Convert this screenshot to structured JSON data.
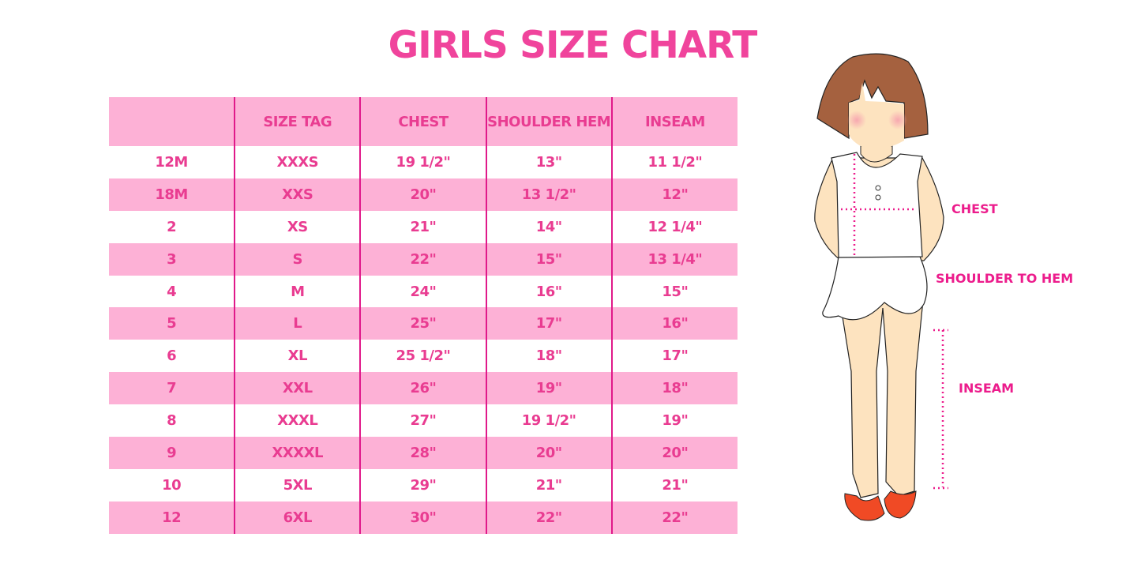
{
  "title": "GIRLS SIZE CHART",
  "table": {
    "headers": [
      "",
      "SIZE TAG",
      "CHEST",
      "SHOULDER HEM",
      "INSEAM"
    ],
    "rows": [
      [
        "12M",
        "XXXS",
        "19 1/2\"",
        "13\"",
        "11 1/2\""
      ],
      [
        "18M",
        "XXS",
        "20\"",
        "13 1/2\"",
        "12\""
      ],
      [
        "2",
        "XS",
        "21\"",
        "14\"",
        "12 1/4\""
      ],
      [
        "3",
        "S",
        "22\"",
        "15\"",
        "13 1/4\""
      ],
      [
        "4",
        "M",
        "24\"",
        "16\"",
        "15\""
      ],
      [
        "5",
        "L",
        "25\"",
        "17\"",
        "16\""
      ],
      [
        "6",
        "XL",
        "25 1/2\"",
        "18\"",
        "17\""
      ],
      [
        "7",
        "XXL",
        "26\"",
        "19\"",
        "18\""
      ],
      [
        "8",
        "XXXL",
        "27\"",
        "19 1/2\"",
        "19\""
      ],
      [
        "9",
        "XXXXL",
        "28\"",
        "20\"",
        "20\""
      ],
      [
        "10",
        "5XL",
        "29\"",
        "21\"",
        "21\""
      ],
      [
        "12",
        "6XL",
        "30\"",
        "22\"",
        "22\""
      ]
    ]
  },
  "figure": {
    "labels": {
      "chest": "CHEST",
      "shoulder_to_hem": "SHOULDER TO HEM",
      "inseam": "INSEAM"
    }
  },
  "colors": {
    "accent": "#e93c91",
    "row_pink": "#fdb1d6",
    "divider": "#e0198a"
  }
}
